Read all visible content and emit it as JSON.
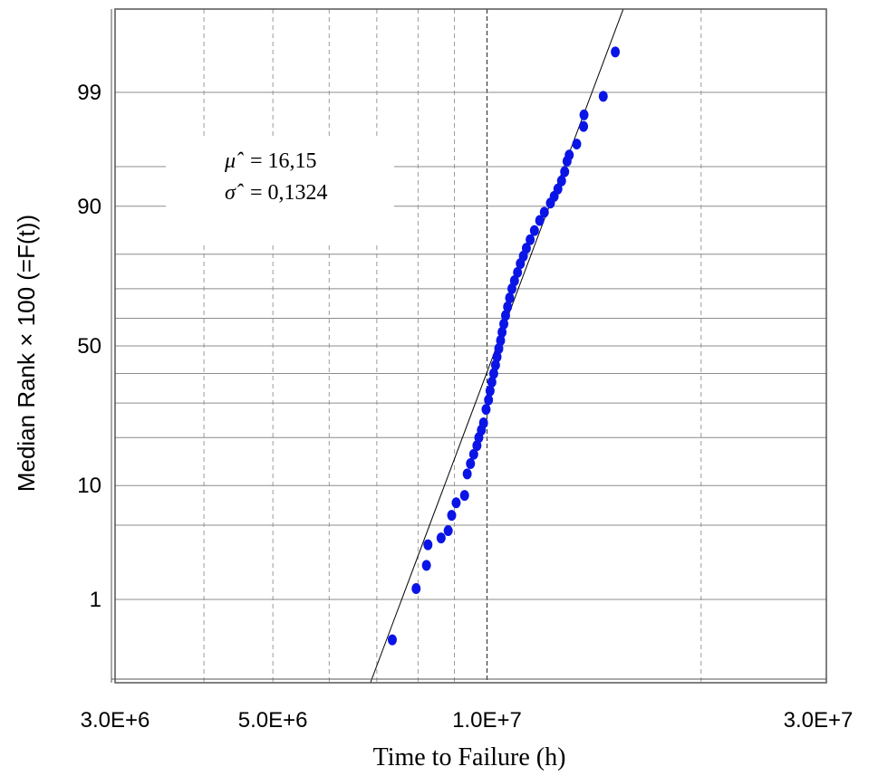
{
  "chart_data": {
    "type": "scatter",
    "title": "",
    "xlabel": "Time to Failure (h)",
    "ylabel": "Median Rank × 100 (=F(t))",
    "x_scale": "log",
    "y_scale": "lognormal probability",
    "xlim": [
      3000000,
      30000000
    ],
    "ylim": [
      0.2,
      99.9
    ],
    "x_tick_labels": [
      "3.0E+6",
      "5.0E+6",
      "1.0E+7",
      "3.0E+7"
    ],
    "y_tick_labels": [
      "1",
      "10",
      "50",
      "90",
      "99"
    ],
    "grid": true,
    "annotation": {
      "mu_symbol": "μ̂",
      "mu_value": "= 16,15",
      "sigma_symbol": "σ̂",
      "sigma_value": "= 0,1324"
    },
    "fit_line": {
      "mu_ln": 16.15,
      "sigma_ln": 0.1324
    },
    "series": [
      {
        "marker_color": "#0a14e6",
        "points": [
          [
            7360000.0,
            0.35
          ],
          [
            7950000.0,
            1.3
          ],
          [
            8220000.0,
            2.2
          ],
          [
            8260000.0,
            3.4
          ],
          [
            8620000.0,
            3.9
          ],
          [
            8820000.0,
            4.5
          ],
          [
            8920000.0,
            6.0
          ],
          [
            9050000.0,
            7.5
          ],
          [
            9300000.0,
            8.5
          ],
          [
            9380000.0,
            12.0
          ],
          [
            9480000.0,
            14.0
          ],
          [
            9580000.0,
            16.0
          ],
          [
            9680000.0,
            18.0
          ],
          [
            9740000.0,
            20.0
          ],
          [
            9820000.0,
            22.0
          ],
          [
            9890000.0,
            24.0
          ],
          [
            9970000.0,
            28.0
          ],
          [
            10050000.0,
            31.0
          ],
          [
            10100000.0,
            34.0
          ],
          [
            10160000.0,
            37.0
          ],
          [
            10220000.0,
            40.0
          ],
          [
            10280000.0,
            43.0
          ],
          [
            10330000.0,
            46.0
          ],
          [
            10390000.0,
            49.0
          ],
          [
            10450000.0,
            52.0
          ],
          [
            10500000.0,
            55.0
          ],
          [
            10560000.0,
            58.0
          ],
          [
            10620000.0,
            61.0
          ],
          [
            10690000.0,
            64.0
          ],
          [
            10760000.0,
            67.0
          ],
          [
            10840000.0,
            70.0
          ],
          [
            10930000.0,
            72.5
          ],
          [
            11040000.0,
            75.0
          ],
          [
            11140000.0,
            77.5
          ],
          [
            11250000.0,
            79.5
          ],
          [
            11360000.0,
            81.5
          ],
          [
            11500000.0,
            83.5
          ],
          [
            11660000.0,
            85.5
          ],
          [
            11860000.0,
            87.5
          ],
          [
            12040000.0,
            89.0
          ],
          [
            12280000.0,
            90.5
          ],
          [
            12430000.0,
            91.5
          ],
          [
            12580000.0,
            92.5
          ],
          [
            12730000.0,
            93.5
          ],
          [
            12860000.0,
            94.5
          ],
          [
            12960000.0,
            95.5
          ],
          [
            13050000.0,
            96.0
          ],
          [
            13370000.0,
            96.8
          ],
          [
            13670000.0,
            97.8
          ],
          [
            13690000.0,
            98.3
          ],
          [
            14570000.0,
            98.9
          ],
          [
            15150000.0,
            99.65
          ]
        ]
      }
    ]
  }
}
